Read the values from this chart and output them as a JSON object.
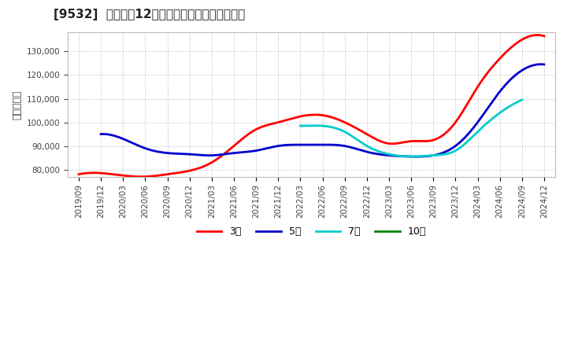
{
  "title": "[9532]  経常利益12か月移動合計の平均値の推移",
  "ylabel": "（百万円）",
  "background_color": "#ffffff",
  "plot_bg_color": "#ffffff",
  "grid_color": "#aaaaaa",
  "ylim": [
    77000,
    138000
  ],
  "yticks": [
    80000,
    90000,
    100000,
    110000,
    120000,
    130000
  ],
  "x_labels": [
    "2019/09",
    "2019/12",
    "2020/03",
    "2020/06",
    "2020/09",
    "2020/12",
    "2021/03",
    "2021/06",
    "2021/09",
    "2021/12",
    "2022/03",
    "2022/06",
    "2022/09",
    "2022/12",
    "2023/03",
    "2023/06",
    "2023/09",
    "2023/12",
    "2024/03",
    "2024/06",
    "2024/09",
    "2024/12"
  ],
  "series_3y": {
    "label": "3年",
    "color": "#ff0000",
    "values": [
      78000,
      78500,
      77500,
      77000,
      78000,
      79500,
      83000,
      90000,
      97000,
      100000,
      102500,
      103000,
      100000,
      95000,
      91000,
      92000,
      92500,
      100000,
      115000,
      127000,
      135000,
      136500
    ]
  },
  "series_5y": {
    "label": "5年",
    "color": "#0000cc",
    "values": [
      null,
      95000,
      93000,
      89000,
      87000,
      86500,
      86000,
      87000,
      88000,
      90000,
      90500,
      90500,
      90000,
      87500,
      86000,
      85500,
      86000,
      90000,
      100000,
      113000,
      122000,
      124500
    ]
  },
  "series_7y": {
    "label": "7年",
    "color": "#00cccc",
    "values": [
      null,
      null,
      null,
      null,
      null,
      null,
      null,
      null,
      null,
      null,
      98500,
      98500,
      96000,
      90000,
      86500,
      85500,
      86000,
      88000,
      96000,
      104000,
      109500,
      null
    ]
  },
  "series_10y": {
    "label": "10年",
    "color": "#008000",
    "values": [
      null,
      null,
      null,
      null,
      null,
      null,
      null,
      null,
      null,
      null,
      null,
      null,
      null,
      null,
      null,
      null,
      null,
      null,
      null,
      null,
      null,
      null
    ]
  },
  "title_fontsize": 11,
  "label_fontsize": 9,
  "tick_fontsize": 7.5,
  "legend_fontsize": 9
}
